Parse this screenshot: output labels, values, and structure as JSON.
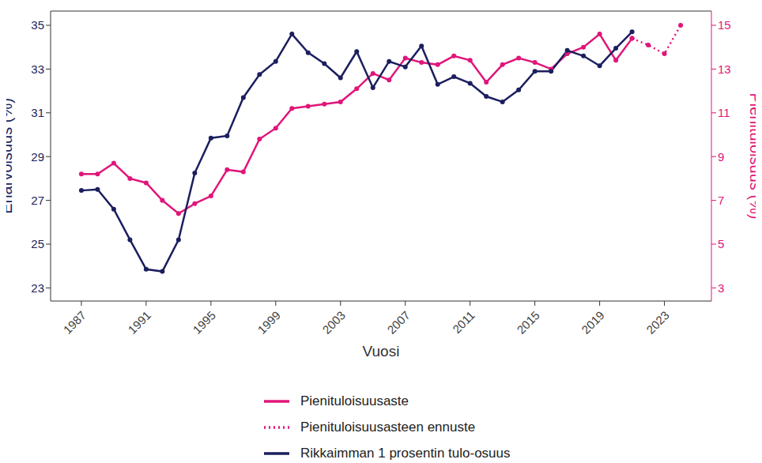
{
  "chart_data": {
    "type": "line",
    "x_label": "Vuosi",
    "y_label": "Eriarvoisuus (%)",
    "y2_label": "Pienituloisuus (%)",
    "x": [
      1987,
      1988,
      1989,
      1990,
      1991,
      1992,
      1993,
      1994,
      1995,
      1996,
      1997,
      1998,
      1999,
      2000,
      2001,
      2002,
      2003,
      2004,
      2005,
      2006,
      2007,
      2008,
      2009,
      2010,
      2011,
      2012,
      2013,
      2014,
      2015,
      2016,
      2017,
      2018,
      2019,
      2020,
      2021,
      2022,
      2023,
      2024
    ],
    "xlim": [
      1985.1,
      2025.9
    ],
    "xticks": [
      1987,
      1991,
      1995,
      1999,
      2003,
      2007,
      2011,
      2015,
      2019,
      2023
    ],
    "ylim": [
      22.4,
      35.65
    ],
    "yticks": [
      23,
      25,
      27,
      29,
      31,
      33,
      35
    ],
    "y2lim": [
      2.4,
      15.65
    ],
    "y2ticks": [
      3,
      5,
      7,
      9,
      11,
      13,
      15
    ],
    "legend": "bottom",
    "series": [
      {
        "name": "Pienituloisuusaste",
        "color": "#e0157a",
        "axis": "y2",
        "marker": "circle",
        "line_style": "solid",
        "values": [
          8.2,
          8.2,
          8.7,
          8.0,
          7.8,
          7.0,
          6.4,
          6.85,
          7.2,
          8.4,
          8.3,
          9.8,
          10.3,
          11.2,
          11.3,
          11.4,
          11.5,
          12.1,
          12.8,
          12.5,
          13.5,
          13.3,
          13.2,
          13.6,
          13.4,
          12.4,
          13.2,
          13.5,
          13.3,
          13.0,
          13.7,
          14.0,
          14.6,
          13.4,
          14.4,
          null,
          null,
          null
        ]
      },
      {
        "name": "Pienituloisuusasteen ennuste",
        "color": "#e0157a",
        "axis": "y2",
        "marker": "circle",
        "line_style": "dotted",
        "values": [
          null,
          null,
          null,
          null,
          null,
          null,
          null,
          null,
          null,
          null,
          null,
          null,
          null,
          null,
          null,
          null,
          null,
          null,
          null,
          null,
          null,
          null,
          null,
          null,
          null,
          null,
          null,
          null,
          null,
          null,
          null,
          null,
          null,
          null,
          14.4,
          14.1,
          13.7,
          15.0
        ]
      },
      {
        "name": "Rikkaimman 1 prosentin tulo-osuus",
        "color": "#1b1f5e",
        "axis": "y",
        "marker": "circle",
        "line_style": "solid",
        "values": [
          27.45,
          27.5,
          26.6,
          25.2,
          23.85,
          23.75,
          25.2,
          28.25,
          29.85,
          29.95,
          31.7,
          32.75,
          33.35,
          34.6,
          33.75,
          33.25,
          32.6,
          33.8,
          32.15,
          33.35,
          33.1,
          34.05,
          32.3,
          32.65,
          32.35,
          31.75,
          31.5,
          32.05,
          32.9,
          32.9,
          33.85,
          33.6,
          33.15,
          33.95,
          34.7,
          null,
          null,
          null
        ]
      }
    ]
  }
}
